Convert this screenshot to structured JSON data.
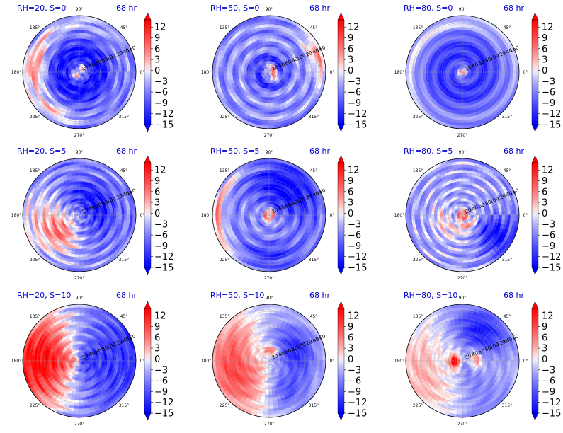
{
  "chart_data": {
    "type": "heatmap",
    "projection": "polar",
    "grid": true,
    "valid_time": "68 hr",
    "angle_ticks": [
      "0°",
      "45°",
      "90°",
      "135°",
      "180°",
      "225°",
      "270°",
      "315°"
    ],
    "radial_ticks": [
      "20",
      "40",
      "60",
      "80",
      "100",
      "120",
      "140",
      "160"
    ],
    "colorbar": {
      "ticks": [
        "12",
        "9",
        "6",
        "3",
        "0",
        "−3",
        "−6",
        "−9",
        "−12",
        "−15"
      ],
      "values": [
        12,
        9,
        6,
        3,
        0,
        -3,
        -6,
        -9,
        -12,
        -15
      ],
      "range": [
        -15,
        14
      ],
      "extend": "both",
      "colormap": [
        "#0000ff",
        "#ffffff",
        "#ff0000"
      ]
    },
    "panels": [
      {
        "title": "RH=20, S=0",
        "time": "68 hr",
        "pattern": "rh20s0"
      },
      {
        "title": "RH=50, S=0",
        "time": "68 hr",
        "pattern": "rh50s0"
      },
      {
        "title": "RH=80, S=0",
        "time": "68 hr",
        "pattern": "rh80s0"
      },
      {
        "title": "RH=20, S=5",
        "time": "68 hr",
        "pattern": "rh20s5"
      },
      {
        "title": "RH=50, S=5",
        "time": "68 hr",
        "pattern": "rh50s5"
      },
      {
        "title": "RH=80, S=5",
        "time": "68 hr",
        "pattern": "rh80s5"
      },
      {
        "title": "RH=20, S=10",
        "time": "68 hr",
        "pattern": "rh20s10"
      },
      {
        "title": "RH=50, S=10",
        "time": "68 hr",
        "pattern": "rh50s10"
      },
      {
        "title": "RH=80, S=10",
        "time": "68 hr",
        "pattern": "rh80s10"
      }
    ]
  }
}
